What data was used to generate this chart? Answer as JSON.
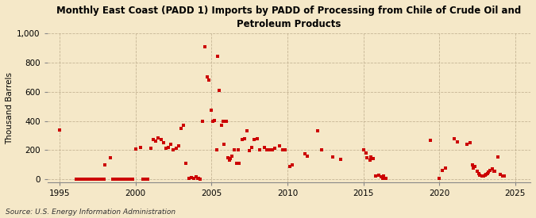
{
  "title": "Monthly East Coast (PADD 1) Imports by PADD of Processing from Chile of Crude Oil and\nPetroleum Products",
  "ylabel": "Thousand Barrels",
  "source": "Source: U.S. Energy Information Administration",
  "background_color": "#f5e8c8",
  "plot_bg_color": "#f5e8c8",
  "marker_color": "#cc0000",
  "xlim": [
    1994.2,
    2026.0
  ],
  "ylim": [
    -20,
    1000
  ],
  "yticks": [
    0,
    200,
    400,
    600,
    800,
    1000
  ],
  "xticks": [
    1995,
    2000,
    2005,
    2010,
    2015,
    2020,
    2025
  ],
  "data": [
    [
      1995.0,
      340
    ],
    [
      1996.08,
      0
    ],
    [
      1996.17,
      0
    ],
    [
      1996.25,
      0
    ],
    [
      1996.33,
      0
    ],
    [
      1996.42,
      0
    ],
    [
      1996.5,
      0
    ],
    [
      1996.58,
      0
    ],
    [
      1996.67,
      0
    ],
    [
      1996.75,
      0
    ],
    [
      1996.83,
      0
    ],
    [
      1996.92,
      0
    ],
    [
      1997.0,
      0
    ],
    [
      1997.08,
      0
    ],
    [
      1997.17,
      0
    ],
    [
      1997.25,
      0
    ],
    [
      1997.33,
      0
    ],
    [
      1997.42,
      0
    ],
    [
      1997.5,
      0
    ],
    [
      1997.58,
      0
    ],
    [
      1997.67,
      0
    ],
    [
      1997.75,
      0
    ],
    [
      1997.83,
      0
    ],
    [
      1997.92,
      0
    ],
    [
      1998.0,
      100
    ],
    [
      1998.33,
      150
    ],
    [
      1998.5,
      0
    ],
    [
      1998.67,
      0
    ],
    [
      1998.83,
      0
    ],
    [
      1999.0,
      0
    ],
    [
      1999.17,
      0
    ],
    [
      1999.33,
      0
    ],
    [
      1999.5,
      0
    ],
    [
      1999.67,
      0
    ],
    [
      1999.83,
      0
    ],
    [
      2000.0,
      205
    ],
    [
      2000.33,
      220
    ],
    [
      2000.5,
      0
    ],
    [
      2000.67,
      0
    ],
    [
      2000.83,
      0
    ],
    [
      2001.0,
      215
    ],
    [
      2001.17,
      270
    ],
    [
      2001.33,
      260
    ],
    [
      2001.5,
      285
    ],
    [
      2001.67,
      275
    ],
    [
      2001.83,
      250
    ],
    [
      2002.0,
      210
    ],
    [
      2002.17,
      220
    ],
    [
      2002.33,
      240
    ],
    [
      2002.5,
      200
    ],
    [
      2002.67,
      215
    ],
    [
      2002.83,
      230
    ],
    [
      2003.0,
      350
    ],
    [
      2003.17,
      370
    ],
    [
      2003.33,
      110
    ],
    [
      2003.5,
      5
    ],
    [
      2003.67,
      10
    ],
    [
      2003.83,
      5
    ],
    [
      2004.0,
      15
    ],
    [
      2004.08,
      5
    ],
    [
      2004.17,
      5
    ],
    [
      2004.25,
      0
    ],
    [
      2004.42,
      400
    ],
    [
      2004.58,
      910
    ],
    [
      2004.75,
      700
    ],
    [
      2004.83,
      680
    ],
    [
      2005.0,
      475
    ],
    [
      2005.08,
      395
    ],
    [
      2005.17,
      405
    ],
    [
      2005.33,
      200
    ],
    [
      2005.42,
      845
    ],
    [
      2005.5,
      610
    ],
    [
      2005.67,
      370
    ],
    [
      2005.75,
      395
    ],
    [
      2005.83,
      240
    ],
    [
      2006.0,
      395
    ],
    [
      2006.08,
      150
    ],
    [
      2006.17,
      130
    ],
    [
      2006.25,
      140
    ],
    [
      2006.33,
      160
    ],
    [
      2006.5,
      200
    ],
    [
      2006.67,
      110
    ],
    [
      2006.75,
      200
    ],
    [
      2006.83,
      110
    ],
    [
      2007.0,
      275
    ],
    [
      2007.17,
      280
    ],
    [
      2007.33,
      330
    ],
    [
      2007.5,
      195
    ],
    [
      2007.67,
      220
    ],
    [
      2007.83,
      270
    ],
    [
      2008.0,
      280
    ],
    [
      2008.17,
      200
    ],
    [
      2008.5,
      220
    ],
    [
      2008.67,
      200
    ],
    [
      2008.83,
      200
    ],
    [
      2009.0,
      200
    ],
    [
      2009.17,
      210
    ],
    [
      2009.5,
      230
    ],
    [
      2009.67,
      200
    ],
    [
      2009.83,
      200
    ],
    [
      2010.17,
      90
    ],
    [
      2010.33,
      100
    ],
    [
      2011.17,
      175
    ],
    [
      2011.33,
      160
    ],
    [
      2012.0,
      330
    ],
    [
      2012.25,
      200
    ],
    [
      2013.0,
      155
    ],
    [
      2013.5,
      135
    ],
    [
      2015.0,
      200
    ],
    [
      2015.17,
      180
    ],
    [
      2015.25,
      150
    ],
    [
      2015.42,
      130
    ],
    [
      2015.5,
      155
    ],
    [
      2015.67,
      140
    ],
    [
      2015.83,
      20
    ],
    [
      2016.0,
      30
    ],
    [
      2016.17,
      15
    ],
    [
      2016.25,
      5
    ],
    [
      2016.33,
      25
    ],
    [
      2016.5,
      5
    ],
    [
      2019.42,
      265
    ],
    [
      2020.0,
      5
    ],
    [
      2020.17,
      60
    ],
    [
      2020.42,
      75
    ],
    [
      2021.0,
      280
    ],
    [
      2021.17,
      255
    ],
    [
      2021.83,
      240
    ],
    [
      2022.0,
      250
    ],
    [
      2022.17,
      100
    ],
    [
      2022.25,
      75
    ],
    [
      2022.33,
      90
    ],
    [
      2022.5,
      55
    ],
    [
      2022.58,
      40
    ],
    [
      2022.67,
      30
    ],
    [
      2022.83,
      20
    ],
    [
      2022.92,
      25
    ],
    [
      2023.0,
      30
    ],
    [
      2023.08,
      35
    ],
    [
      2023.17,
      40
    ],
    [
      2023.25,
      50
    ],
    [
      2023.33,
      60
    ],
    [
      2023.5,
      70
    ],
    [
      2023.58,
      55
    ],
    [
      2023.67,
      55
    ],
    [
      2023.83,
      155
    ],
    [
      2024.0,
      35
    ],
    [
      2024.17,
      25
    ],
    [
      2024.25,
      20
    ]
  ]
}
